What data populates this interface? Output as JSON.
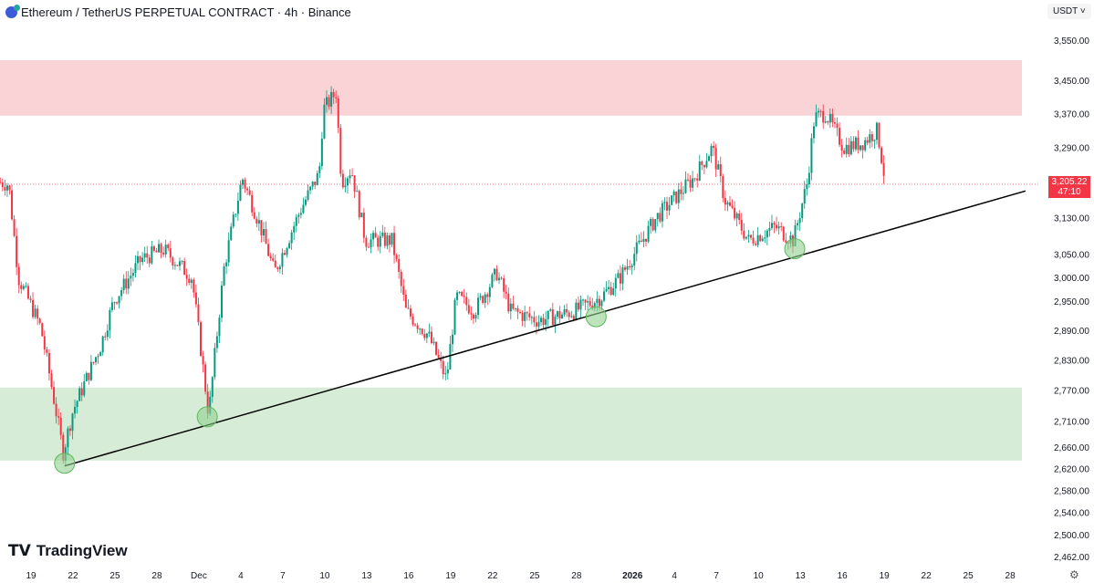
{
  "header": {
    "title": "Ethereum / TetherUS PERPETUAL CONTRACT · 4h · Binance",
    "currency": "USDT"
  },
  "current_price": {
    "price": "3,205.22",
    "countdown": "47:10",
    "value": 3205.22
  },
  "branding": "TradingView",
  "colors": {
    "up": "#089981",
    "down": "#f23645",
    "resistance_zone": "#f9d3d6",
    "support_zone": "#d7ecd6",
    "trendline": "#000000",
    "touch_circle": "#8fd18f"
  },
  "chart_data": {
    "type": "candlestick",
    "title": "Ethereum / TetherUS PERPETUAL CONTRACT · 4h · Binance",
    "x_unit": "days since Nov 19 2025",
    "y_scale": "log",
    "ylim": [
      2440,
      3600
    ],
    "y_ticks": [
      "3,550.00",
      "3,450.00",
      "3,370.00",
      "3,290.00",
      "3,130.00",
      "3,050.00",
      "3,000.00",
      "2,950.00",
      "2,890.00",
      "2,830.00",
      "2,770.00",
      "2,710.00",
      "2,660.00",
      "2,620.00",
      "2,580.00",
      "2,540.00",
      "2,500.00",
      "2,462.00"
    ],
    "y_tick_values": [
      3550,
      3450,
      3370,
      3290,
      3130,
      3050,
      3000,
      2950,
      2890,
      2830,
      2770,
      2710,
      2660,
      2620,
      2580,
      2540,
      2500,
      2462
    ],
    "x_ticks": [
      {
        "label": "19",
        "day": 0
      },
      {
        "label": "22",
        "day": 3
      },
      {
        "label": "25",
        "day": 6
      },
      {
        "label": "28",
        "day": 9
      },
      {
        "label": "Dec",
        "day": 12
      },
      {
        "label": "4",
        "day": 15
      },
      {
        "label": "7",
        "day": 18
      },
      {
        "label": "10",
        "day": 21
      },
      {
        "label": "13",
        "day": 24
      },
      {
        "label": "16",
        "day": 27
      },
      {
        "label": "19",
        "day": 30
      },
      {
        "label": "22",
        "day": 33
      },
      {
        "label": "25",
        "day": 36
      },
      {
        "label": "28",
        "day": 39
      },
      {
        "label": "2026",
        "day": 43
      },
      {
        "label": "4",
        "day": 46
      },
      {
        "label": "7",
        "day": 49
      },
      {
        "label": "10",
        "day": 52
      },
      {
        "label": "13",
        "day": 55
      },
      {
        "label": "16",
        "day": 58
      },
      {
        "label": "19",
        "day": 61
      },
      {
        "label": "22",
        "day": 64
      },
      {
        "label": "25",
        "day": 67
      },
      {
        "label": "28",
        "day": 70
      }
    ],
    "price_path": [
      [
        -2.2,
        3210
      ],
      [
        -1.6,
        3205
      ],
      [
        -0.9,
        3000
      ],
      [
        0.7,
        2895
      ],
      [
        2.3,
        2650
      ],
      [
        3.0,
        2730
      ],
      [
        5.0,
        2860
      ],
      [
        5.9,
        2950
      ],
      [
        7.9,
        3040
      ],
      [
        9.5,
        3060
      ],
      [
        11.5,
        3000
      ],
      [
        12.7,
        2720
      ],
      [
        13.8,
        3020
      ],
      [
        15.1,
        3220
      ],
      [
        16.4,
        3110
      ],
      [
        17.4,
        3010
      ],
      [
        19.3,
        3150
      ],
      [
        20.6,
        3230
      ],
      [
        20.9,
        3380
      ],
      [
        21.8,
        3420
      ],
      [
        22.2,
        3210
      ],
      [
        22.9,
        3240
      ],
      [
        23.9,
        3080
      ],
      [
        25.8,
        3080
      ],
      [
        26.8,
        2930
      ],
      [
        28.4,
        2880
      ],
      [
        29.7,
        2790
      ],
      [
        30.4,
        2960
      ],
      [
        31.7,
        2930
      ],
      [
        33.3,
        3010
      ],
      [
        34.3,
        2930
      ],
      [
        36.3,
        2910
      ],
      [
        38.9,
        2930
      ],
      [
        40.2,
        2950
      ],
      [
        40.8,
        2960
      ],
      [
        42.1,
        3000
      ],
      [
        44.7,
        3130
      ],
      [
        47.4,
        3220
      ],
      [
        48.7,
        3290
      ],
      [
        49.6,
        3170
      ],
      [
        51.3,
        3080
      ],
      [
        53.2,
        3110
      ],
      [
        54.5,
        3080
      ],
      [
        55.5,
        3210
      ],
      [
        56.0,
        3360
      ],
      [
        56.8,
        3370
      ],
      [
        58.1,
        3290
      ],
      [
        59.4,
        3300
      ],
      [
        60.5,
        3330
      ],
      [
        61.1,
        3205
      ]
    ],
    "zones": [
      {
        "name": "resistance",
        "from": 3365,
        "to": 3500
      },
      {
        "name": "support",
        "from": 2635,
        "to": 2775
      }
    ],
    "trendline": {
      "from": [
        2.4,
        2625
      ],
      "to": [
        71.1,
        3190
      ]
    },
    "touch_points": [
      [
        2.4,
        2630
      ],
      [
        12.6,
        2718
      ],
      [
        40.4,
        2918
      ],
      [
        54.6,
        3062
      ]
    ]
  }
}
